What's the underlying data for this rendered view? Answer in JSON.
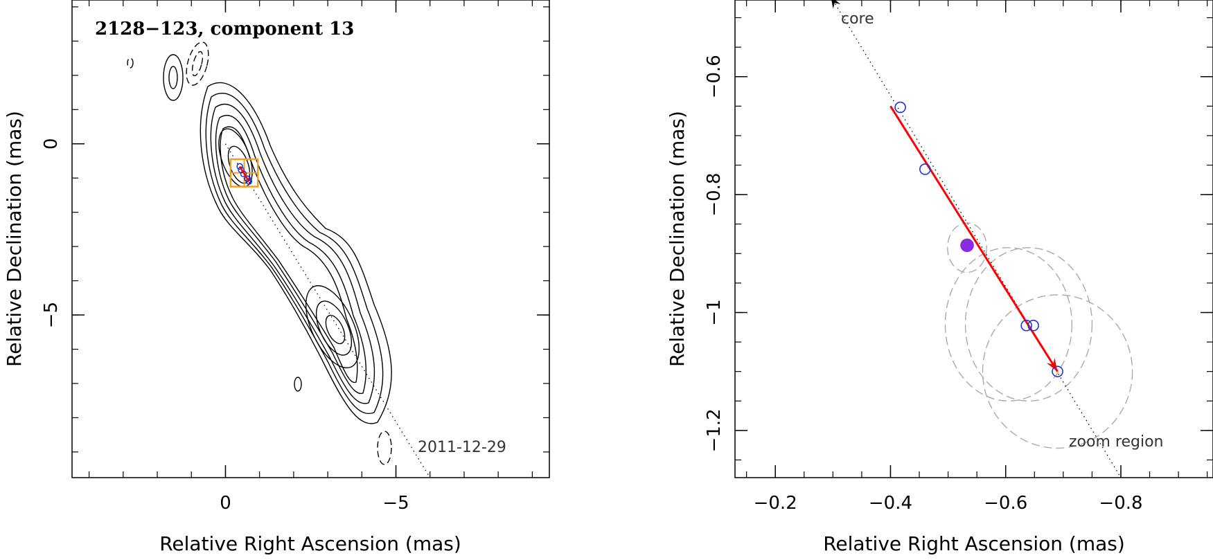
{
  "chart_data": [
    {
      "type": "contour",
      "title": "2128−123, component 13",
      "xlabel": "Relative Right Ascension (mas)",
      "ylabel": "Relative Declination (mas)",
      "xlim": [
        4.5,
        -9.5
      ],
      "ylim": [
        -9.75,
        4.2
      ],
      "x_ticks": [
        0,
        -5
      ],
      "x_tick_labels": [
        "0",
        "−5"
      ],
      "y_ticks": [
        0,
        -5
      ],
      "y_tick_labels": [
        "0",
        "−5"
      ],
      "epoch_label": "2011-12-29",
      "jet_axis": {
        "from": [
          0,
          0
        ],
        "to": [
          -6,
          -9.75
        ]
      },
      "zoom_box": {
        "x": [
          -0.15,
          -0.95
        ],
        "y": [
          -0.45,
          -1.25
        ]
      },
      "component_positions": [
        [
          -0.42,
          -0.66
        ],
        [
          -0.46,
          -0.76
        ],
        [
          -0.53,
          -0.88
        ],
        [
          -0.64,
          -1.02
        ],
        [
          -0.65,
          -1.02
        ],
        [
          -0.69,
          -1.1
        ]
      ],
      "colors": {
        "contour": "#000000",
        "zoom_box": "#f0a020",
        "components": "#2233cc",
        "motion": "#ff0000"
      }
    },
    {
      "type": "scatter",
      "xlabel": "Relative Right Ascension (mas)",
      "ylabel": "Relative Declination (mas)",
      "xlim": [
        -0.13,
        -0.96
      ],
      "ylim": [
        -1.28,
        -0.47
      ],
      "x_ticks": [
        -0.2,
        -0.4,
        -0.6,
        -0.8
      ],
      "x_tick_labels": [
        "−0.2",
        "−0.4",
        "−0.6",
        "−0.8"
      ],
      "y_ticks": [
        -0.6,
        -0.8,
        -1.0,
        -1.2
      ],
      "y_tick_labels": [
        "−0.6",
        "−0.8",
        "−1",
        "−1.2"
      ],
      "core_label": "core",
      "zoom_label": "zoom region",
      "points": [
        {
          "x": -0.417,
          "y": -0.652,
          "filled": false
        },
        {
          "x": -0.46,
          "y": -0.757,
          "filled": false
        },
        {
          "x": -0.533,
          "y": -0.886,
          "filled": true
        },
        {
          "x": -0.636,
          "y": -1.022,
          "filled": false
        },
        {
          "x": -0.648,
          "y": -1.022,
          "filled": false
        },
        {
          "x": -0.69,
          "y": -1.1,
          "filled": false
        }
      ],
      "error_ellipses": [
        {
          "cx": -0.533,
          "cy": -0.89,
          "rx": 0.034,
          "ry": 0.042
        },
        {
          "cx": -0.605,
          "cy": -1.02,
          "rx": 0.11,
          "ry": 0.13
        },
        {
          "cx": -0.64,
          "cy": -1.02,
          "rx": 0.11,
          "ry": 0.13
        },
        {
          "cx": -0.69,
          "cy": -1.1,
          "rx": 0.13,
          "ry": 0.13
        }
      ],
      "jet_axis": {
        "from": [
          -0.3,
          -0.47
        ],
        "to": [
          -0.8,
          -1.28
        ]
      },
      "motion_vector": {
        "from": [
          -0.4,
          -0.65
        ],
        "to": [
          -0.69,
          -1.1
        ]
      },
      "colors": {
        "points": "#2233cc",
        "filled_point": "#8a2be2",
        "motion": "#ff0000",
        "ellipse": "#aaaaaa"
      }
    }
  ]
}
